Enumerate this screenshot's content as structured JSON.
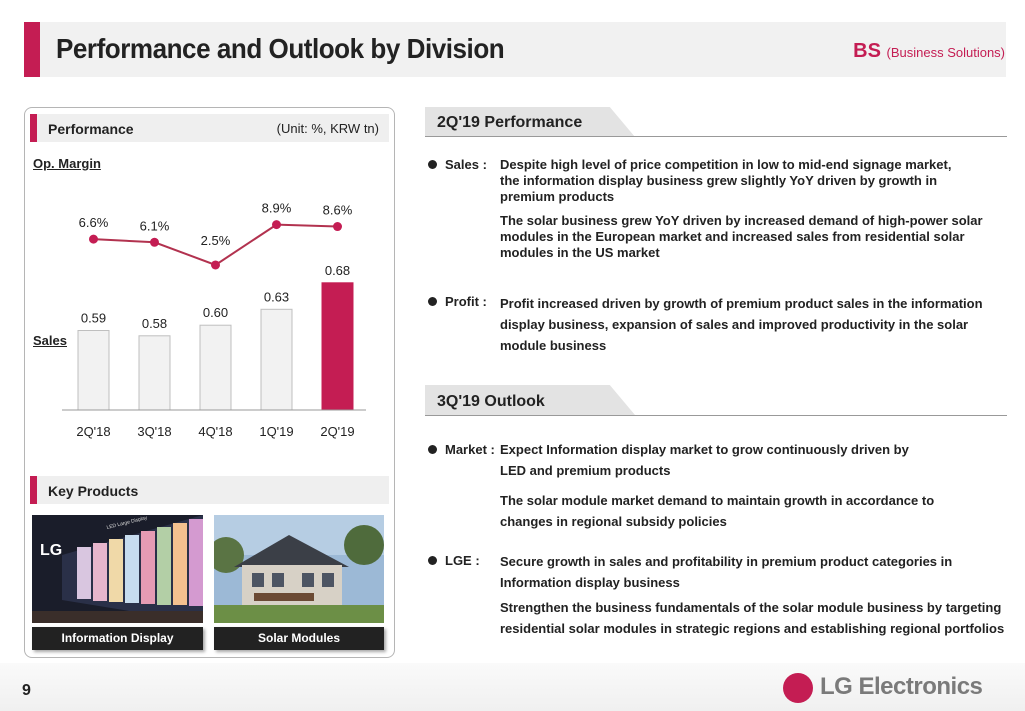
{
  "header": {
    "title": "Performance and Outlook by Division",
    "division_code": "BS",
    "division_name": "(Business Solutions)"
  },
  "performance_panel": {
    "heading": "Performance",
    "unit": "(Unit: %, KRW tn)",
    "margin_label": "Op. Margin",
    "sales_label": "Sales"
  },
  "chart_data": {
    "type": "bar",
    "categories": [
      "2Q'18",
      "3Q'18",
      "4Q'18",
      "1Q'19",
      "2Q'19"
    ],
    "series": [
      {
        "name": "Sales",
        "type": "bar",
        "values": [
          0.59,
          0.58,
          0.6,
          0.63,
          0.68
        ],
        "labels": [
          "0.59",
          "0.58",
          "0.60",
          "0.63",
          "0.68"
        ]
      },
      {
        "name": "Op. Margin",
        "type": "line",
        "values": [
          6.6,
          6.1,
          2.5,
          8.9,
          8.6
        ],
        "labels": [
          "6.6%",
          "6.1%",
          "2.5%",
          "8.9%",
          "8.6%"
        ]
      }
    ],
    "highlight_index": 4,
    "colors": {
      "accent": "#c41d53",
      "bar": "#f2f2f2",
      "bar_stroke": "#bfbfbf",
      "line": "#b2324f"
    }
  },
  "key_products": {
    "heading": "Key Products",
    "items": [
      {
        "caption": "Information Display",
        "image": "led-display-wall"
      },
      {
        "caption": "Solar Modules",
        "image": "house-with-solar-panels"
      }
    ],
    "image_texts": [
      "LG",
      "LED Large Display"
    ]
  },
  "performance_section": {
    "title": "2Q'19 Performance",
    "items": [
      {
        "label": "Sales :",
        "paragraphs": [
          "Despite high level of price competition in low to mid-end signage market, the information display business grew slightly YoY driven by growth in premium products",
          "The solar business grew YoY driven by increased demand of high-power solar modules in the European market and increased sales from residential solar modules in the US market"
        ]
      },
      {
        "label": "Profit :",
        "paragraphs": [
          "Profit increased driven by growth of premium product sales in the information display business, expansion of sales and improved productivity in the solar module business"
        ]
      }
    ]
  },
  "outlook_section": {
    "title": "3Q'19 Outlook",
    "items": [
      {
        "label": "Market :",
        "paragraphs": [
          "Expect Information display market to grow continuously driven by LED and premium products",
          "The solar module market demand to maintain growth in accordance to changes in regional subsidy policies"
        ]
      },
      {
        "label": "LGE :",
        "paragraphs": [
          "Secure growth in sales and profitability in premium product categories in Information display business",
          "Strengthen the business fundamentals of the solar module business by targeting residential solar modules in strategic regions and establishing regional portfolios"
        ]
      }
    ]
  },
  "footer": {
    "page_number": "9",
    "logo_text": "LG Electronics"
  }
}
